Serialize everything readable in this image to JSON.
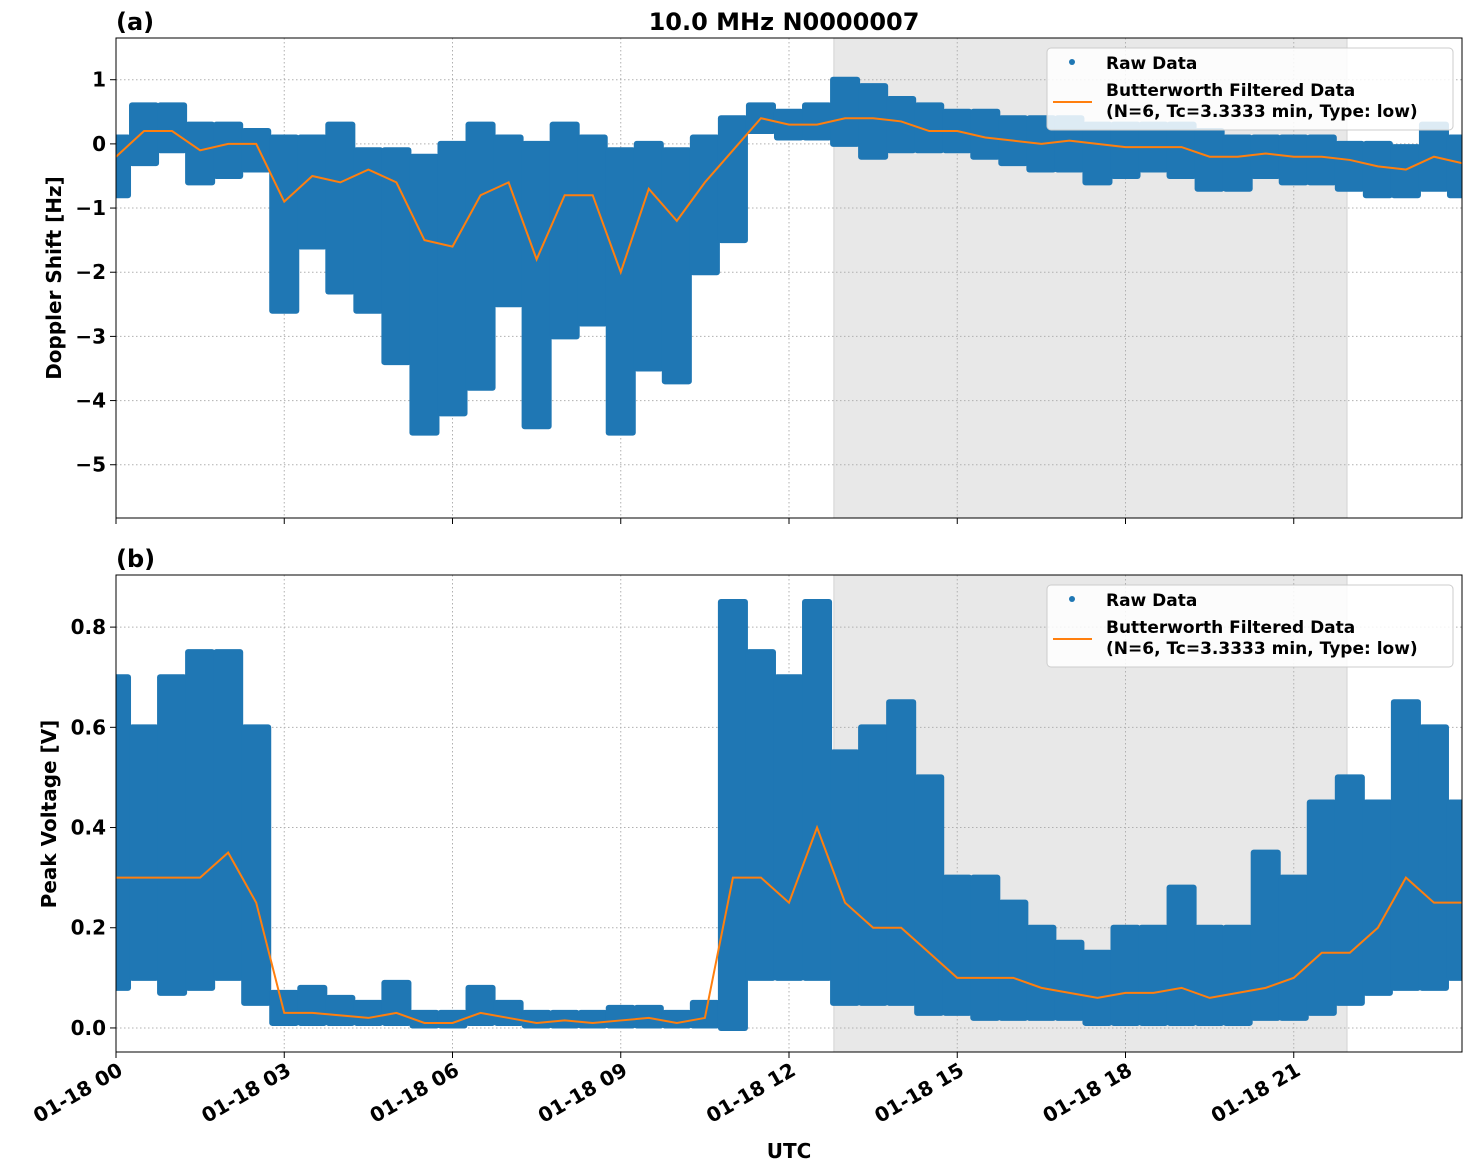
{
  "chart_data": [
    {
      "type": "scatter",
      "panel_label": "(a)",
      "title": "10.0 MHz N0000007",
      "xlabel": "",
      "ylabel": "Doppler Shift [Hz]",
      "xlim_hours": [
        0,
        24
      ],
      "ylim": [
        -5.83,
        1.65
      ],
      "yticks": [
        1,
        0,
        -1,
        -2,
        -3,
        -4,
        -5
      ],
      "ytick_labels": [
        "1",
        "0",
        "−1",
        "−2",
        "−3",
        "−4",
        "−5"
      ],
      "grid": true,
      "shaded_region_hours": [
        12.8,
        21.95
      ],
      "legend": {
        "placement": "top-right",
        "entries": [
          "Raw Data",
          "Butterworth Filtered Data",
          "(N=6, Tc=3.3333 min, Type: low)"
        ]
      },
      "x_hours": [
        0,
        0.5,
        1,
        1.5,
        2,
        2.5,
        3,
        3.5,
        4,
        4.5,
        5,
        5.5,
        6,
        6.5,
        7,
        7.5,
        8,
        8.5,
        9,
        9.5,
        10,
        10.5,
        11,
        11.5,
        12,
        12.5,
        13,
        13.5,
        14,
        14.5,
        15,
        15.5,
        16,
        16.5,
        17,
        17.5,
        18,
        18.5,
        19,
        19.5,
        20,
        20.5,
        21,
        21.5,
        22,
        22.5,
        23,
        23.5,
        24
      ],
      "series": [
        {
          "name": "Butterworth Filtered Data",
          "values": [
            -0.2,
            0.2,
            0.2,
            -0.1,
            0.0,
            0.0,
            -0.9,
            -0.5,
            -0.6,
            -0.4,
            -0.6,
            -1.5,
            -1.6,
            -0.8,
            -0.6,
            -1.8,
            -0.8,
            -0.8,
            -2.0,
            -0.7,
            -1.2,
            -0.6,
            -0.1,
            0.4,
            0.3,
            0.3,
            0.4,
            0.4,
            0.35,
            0.2,
            0.2,
            0.1,
            0.05,
            0.0,
            0.05,
            0.0,
            -0.05,
            -0.05,
            -0.05,
            -0.2,
            -0.2,
            -0.15,
            -0.2,
            -0.2,
            -0.25,
            -0.35,
            -0.4,
            -0.2,
            -0.3
          ]
        },
        {
          "name": "Raw Data",
          "low": [
            -0.8,
            -0.3,
            -0.1,
            -0.6,
            -0.5,
            -0.4,
            -2.6,
            -1.6,
            -2.3,
            -2.6,
            -3.4,
            -4.5,
            -4.2,
            -3.8,
            -2.5,
            -4.4,
            -3.0,
            -2.8,
            -4.5,
            -3.5,
            -3.7,
            -2.0,
            -1.5,
            0.2,
            0.1,
            0.1,
            0.0,
            -0.2,
            -0.1,
            -0.1,
            -0.1,
            -0.2,
            -0.3,
            -0.4,
            -0.4,
            -0.6,
            -0.5,
            -0.4,
            -0.5,
            -0.7,
            -0.7,
            -0.5,
            -0.6,
            -0.6,
            -0.7,
            -0.8,
            -0.8,
            -0.7,
            -0.8
          ],
          "high": [
            0.1,
            0.6,
            0.6,
            0.3,
            0.3,
            0.2,
            0.1,
            0.1,
            0.3,
            -0.1,
            -0.1,
            -0.2,
            0.0,
            0.3,
            0.1,
            0.0,
            0.3,
            0.1,
            -0.1,
            0.0,
            -0.1,
            0.1,
            0.4,
            0.6,
            0.5,
            0.6,
            1.0,
            0.9,
            0.7,
            0.6,
            0.5,
            0.5,
            0.4,
            0.4,
            0.4,
            0.3,
            0.3,
            0.3,
            0.3,
            0.2,
            0.1,
            0.1,
            0.1,
            0.1,
            0.0,
            0.0,
            -0.05,
            0.3,
            0.1
          ]
        }
      ]
    },
    {
      "type": "scatter",
      "panel_label": "(b)",
      "title": "",
      "xlabel": "UTC",
      "ylabel": "Peak Voltage [V]",
      "xlim_hours": [
        0,
        24
      ],
      "ylim": [
        -0.048,
        0.904
      ],
      "yticks": [
        0.8,
        0.6,
        0.4,
        0.2,
        0.0
      ],
      "ytick_labels": [
        "0.8",
        "0.6",
        "0.4",
        "0.2",
        "0.0"
      ],
      "xtick_hours": [
        0,
        3,
        6,
        9,
        12,
        15,
        18,
        21
      ],
      "xtick_labels": [
        "01-18 00",
        "01-18 03",
        "01-18 06",
        "01-18 09",
        "01-18 12",
        "01-18 15",
        "01-18 18",
        "01-18 21"
      ],
      "grid": true,
      "shaded_region_hours": [
        12.8,
        21.95
      ],
      "legend": {
        "placement": "top-right",
        "entries": [
          "Raw Data",
          "Butterworth Filtered Data",
          "(N=6, Tc=3.3333 min, Type: low)"
        ]
      },
      "x_hours": [
        0,
        0.5,
        1,
        1.5,
        2,
        2.5,
        3,
        3.5,
        4,
        4.5,
        5,
        5.5,
        6,
        6.5,
        7,
        7.5,
        8,
        8.5,
        9,
        9.5,
        10,
        10.5,
        11,
        11.5,
        12,
        12.5,
        13,
        13.5,
        14,
        14.5,
        15,
        15.5,
        16,
        16.5,
        17,
        17.5,
        18,
        18.5,
        19,
        19.5,
        20,
        20.5,
        21,
        21.5,
        22,
        22.5,
        23,
        23.5,
        24
      ],
      "series": [
        {
          "name": "Butterworth Filtered Data",
          "values": [
            0.3,
            0.3,
            0.3,
            0.3,
            0.35,
            0.25,
            0.03,
            0.03,
            0.025,
            0.02,
            0.03,
            0.01,
            0.01,
            0.03,
            0.02,
            0.01,
            0.015,
            0.01,
            0.015,
            0.02,
            0.01,
            0.02,
            0.3,
            0.3,
            0.25,
            0.4,
            0.25,
            0.2,
            0.2,
            0.15,
            0.1,
            0.1,
            0.1,
            0.08,
            0.07,
            0.06,
            0.07,
            0.07,
            0.08,
            0.06,
            0.07,
            0.08,
            0.1,
            0.15,
            0.15,
            0.2,
            0.3,
            0.25,
            0.25
          ]
        },
        {
          "name": "Raw Data",
          "low": [
            0.08,
            0.1,
            0.07,
            0.08,
            0.1,
            0.05,
            0.01,
            0.01,
            0.01,
            0.01,
            0.01,
            0.005,
            0.005,
            0.01,
            0.01,
            0.005,
            0.005,
            0.005,
            0.005,
            0.005,
            0.005,
            0.005,
            0.0,
            0.1,
            0.1,
            0.1,
            0.05,
            0.05,
            0.05,
            0.03,
            0.03,
            0.02,
            0.02,
            0.02,
            0.02,
            0.01,
            0.01,
            0.01,
            0.01,
            0.01,
            0.01,
            0.02,
            0.02,
            0.03,
            0.05,
            0.07,
            0.08,
            0.08,
            0.1
          ],
          "high": [
            0.7,
            0.6,
            0.7,
            0.75,
            0.75,
            0.6,
            0.07,
            0.08,
            0.06,
            0.05,
            0.09,
            0.03,
            0.03,
            0.08,
            0.05,
            0.03,
            0.03,
            0.03,
            0.04,
            0.04,
            0.03,
            0.05,
            0.85,
            0.75,
            0.7,
            0.85,
            0.55,
            0.6,
            0.65,
            0.5,
            0.3,
            0.3,
            0.25,
            0.2,
            0.17,
            0.15,
            0.2,
            0.2,
            0.28,
            0.2,
            0.2,
            0.35,
            0.3,
            0.45,
            0.5,
            0.45,
            0.65,
            0.6,
            0.45
          ]
        }
      ]
    }
  ],
  "colors": {
    "raw": "#1f77b4",
    "filtered": "#ff7f0e",
    "shade": "#e8e8e8",
    "grid": "#b0b0b0"
  }
}
